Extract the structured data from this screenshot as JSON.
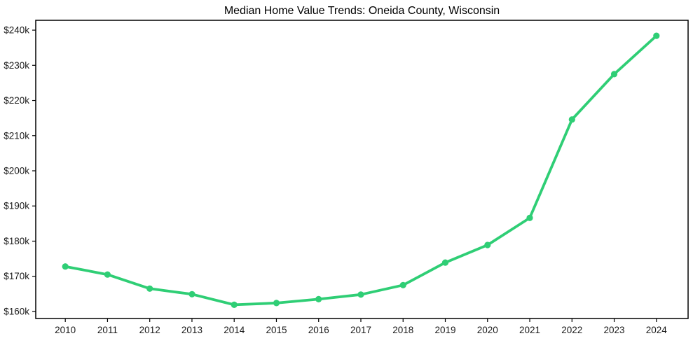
{
  "figure": {
    "background": "#ffffff"
  },
  "chart_data": {
    "type": "line",
    "title": "Median Home Value Trends: Oneida County, Wisconsin",
    "x": [
      2010,
      2011,
      2012,
      2013,
      2014,
      2015,
      2016,
      2017,
      2018,
      2019,
      2020,
      2021,
      2022,
      2023,
      2024
    ],
    "x_tick_labels": [
      "2010",
      "2011",
      "2012",
      "2013",
      "2014",
      "2015",
      "2016",
      "2017",
      "2018",
      "2019",
      "2020",
      "2021",
      "2022",
      "2023",
      "2024"
    ],
    "y_ticks": [
      160,
      170,
      180,
      190,
      200,
      210,
      220,
      230,
      240
    ],
    "y_tick_labels": [
      "$160k",
      "$170k",
      "$180k",
      "$190k",
      "$200k",
      "$210k",
      "$220k",
      "$230k",
      "$240k"
    ],
    "units": "thousands of dollars",
    "series": [
      {
        "color": "#2fce75",
        "marker": "circle",
        "values": [
          172.8,
          170.5,
          166.5,
          164.9,
          161.9,
          162.4,
          163.5,
          164.8,
          167.5,
          173.9,
          178.9,
          186.6,
          214.6,
          227.5,
          238.4
        ]
      }
    ],
    "xlim": [
      2009.3,
      2024.75
    ],
    "ylim": [
      158,
      242.8
    ],
    "grid": false,
    "legend": "none",
    "axis_color": "#000000",
    "tick_label_color": "#1a1a1a",
    "title_color": "#000000"
  }
}
